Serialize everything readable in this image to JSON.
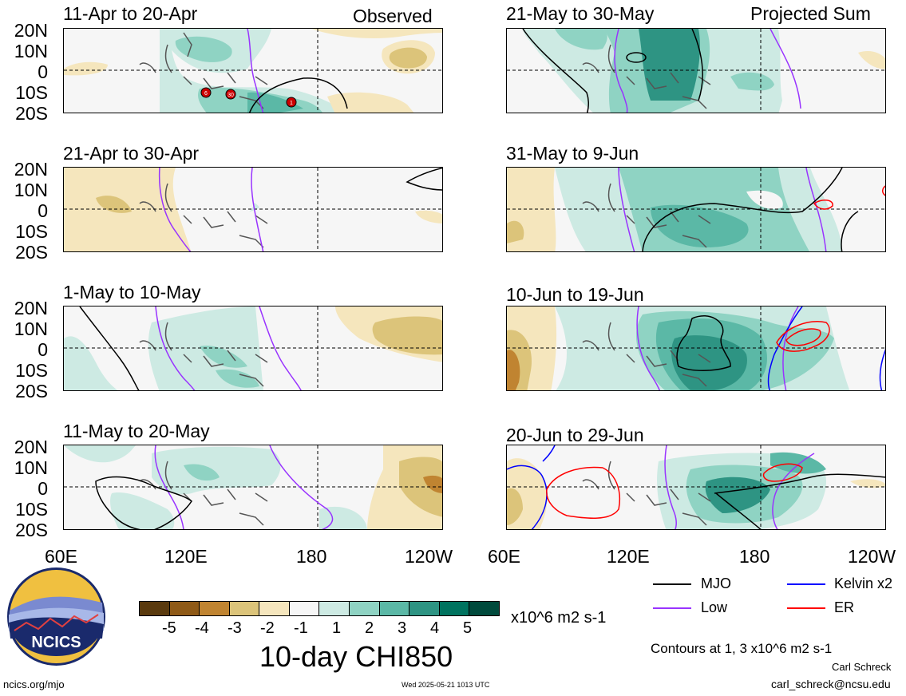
{
  "panels": [
    {
      "title": "11-Apr to 20-Apr",
      "tag": "Observed",
      "storms": [
        "6",
        "30",
        "1"
      ]
    },
    {
      "title": "21-May to 30-May",
      "tag": "Projected Sum"
    },
    {
      "title": "21-Apr to 30-Apr"
    },
    {
      "title": "31-May to 9-Jun"
    },
    {
      "title": "1-May to 10-May"
    },
    {
      "title": "10-Jun to 19-Jun"
    },
    {
      "title": "11-May to 20-May"
    },
    {
      "title": "20-Jun to 29-Jun"
    }
  ],
  "lat_labels": [
    "20N",
    "10N",
    "0",
    "10S",
    "20S"
  ],
  "lon_labels": [
    "60E",
    "120E",
    "180",
    "120W"
  ],
  "colorbar": {
    "colors": [
      "#5a3a0e",
      "#8f5a17",
      "#c08431",
      "#dcc47a",
      "#f5e6bd",
      "#f6f6f6",
      "#cdeae3",
      "#8fd3c3",
      "#5bb8a6",
      "#2e9483",
      "#00735f",
      "#004a3c"
    ],
    "ticks": [
      "-5",
      "-4",
      "-3",
      "-2",
      "-1",
      "1",
      "2",
      "3",
      "4",
      "5"
    ],
    "units": "x10^6 m2 s-1",
    "title": "10-day CHI850"
  },
  "legend": {
    "items": [
      {
        "label": "MJO",
        "color": "#000000"
      },
      {
        "label": "Kelvin x2",
        "color": "#0000ff"
      },
      {
        "label": "Low",
        "color": "#9933ff"
      },
      {
        "label": "ER",
        "color": "#ff0000"
      }
    ],
    "contours_note": "Contours at 1, 3 x10^6 m2 s-1",
    "author": "Carl Schreck",
    "email": "carl_schreck@ncsu.edu"
  },
  "footer": {
    "site": "ncics.org/mjo",
    "timestamp": "Wed 2025-05-21 1013 UTC",
    "logo_text": "NCICS"
  }
}
